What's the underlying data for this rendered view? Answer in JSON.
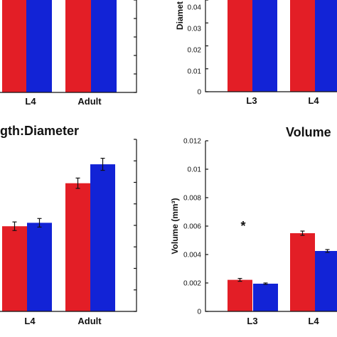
{
  "colors": {
    "red": "#e31e26",
    "blue": "#1223d6"
  },
  "chart_data": [
    {
      "panel": "top-left",
      "type": "bar",
      "categories": [
        "L4",
        "Adult"
      ],
      "series": [
        {
          "values": [
            1.0,
            1.0
          ]
        },
        {
          "values": [
            1.0,
            1.0
          ]
        }
      ],
      "title": "",
      "xlabel": "",
      "ylabel": "",
      "ylim": [
        0,
        1
      ],
      "yticks": []
    },
    {
      "panel": "top-right",
      "type": "bar",
      "categories": [
        "L3",
        "L4"
      ],
      "series": [
        {
          "values": [
            0.046,
            0.046
          ]
        },
        {
          "values": [
            0.046,
            0.046
          ]
        }
      ],
      "title": "",
      "xlabel": "",
      "ylabel": "Diamet",
      "ylim": [
        0,
        0.045
      ],
      "yticks": [
        "0",
        "0.01",
        "0.02",
        "0.03",
        "0.04"
      ]
    },
    {
      "panel": "bottom-left",
      "type": "bar",
      "categories": [
        "L4",
        "Adult"
      ],
      "series": [
        {
          "values": [
            0.495,
            0.745
          ],
          "errors": [
            0.025,
            0.03
          ]
        },
        {
          "values": [
            0.515,
            0.855
          ],
          "errors": [
            0.025,
            0.035
          ]
        }
      ],
      "title": "gth:Diameter",
      "xlabel": "",
      "ylabel": "",
      "ylim": [
        0,
        1
      ],
      "yticks": []
    },
    {
      "panel": "bottom-right",
      "type": "bar",
      "categories": [
        "L3",
        "L4"
      ],
      "series": [
        {
          "values": [
            0.00222,
            0.0055
          ],
          "errors": [
            0.0001,
            0.00015
          ]
        },
        {
          "values": [
            0.00195,
            0.00425
          ],
          "errors": [
            5e-05,
            0.0001
          ]
        }
      ],
      "annotation": "*",
      "title": "Volume",
      "xlabel": "",
      "ylabel": "Volume (mm³)",
      "ylim": [
        0,
        0.012
      ],
      "yticks": [
        "0",
        "0.002",
        "0.004",
        "0.006",
        "0.008",
        "0.01",
        "0.012"
      ]
    }
  ]
}
